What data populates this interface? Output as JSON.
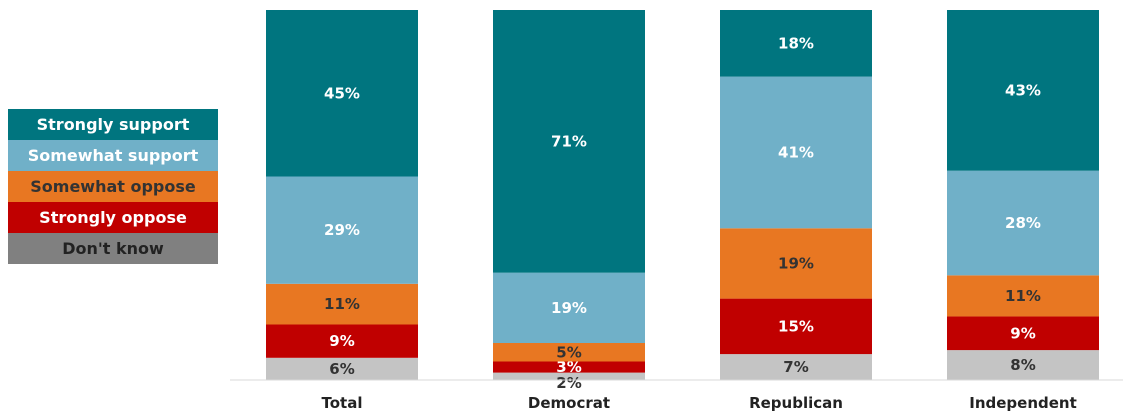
{
  "chart_data": {
    "type": "bar",
    "stacked": true,
    "categories": [
      "Total",
      "Democrat",
      "Republican",
      "Independent"
    ],
    "series": [
      {
        "name": "Don't know",
        "values": [
          6,
          2,
          7,
          8
        ],
        "labels": [
          "6%",
          "2%",
          "7%",
          "8%"
        ],
        "color": "#c4c4c4",
        "label_color": "#333333"
      },
      {
        "name": "Strongly oppose",
        "values": [
          9,
          3,
          15,
          9
        ],
        "labels": [
          "9%",
          "3%",
          "15%",
          "9%"
        ],
        "color": "#c00000",
        "label_color": "#ffffff"
      },
      {
        "name": "Somewhat oppose",
        "values": [
          11,
          5,
          19,
          11
        ],
        "labels": [
          "11%",
          "5%",
          "19%",
          "11%"
        ],
        "color": "#e87722",
        "label_color": "#333333"
      },
      {
        "name": "Somewhat support",
        "values": [
          29,
          19,
          41,
          28
        ],
        "labels": [
          "29%",
          "19%",
          "41%",
          "28%"
        ],
        "color": "#70b0c8",
        "label_color": "#ffffff"
      },
      {
        "name": "Strongly support",
        "values": [
          45,
          71,
          18,
          43
        ],
        "labels": [
          "45%",
          "71%",
          "18%",
          "43%"
        ],
        "color": "#00757f",
        "label_color": "#ffffff"
      }
    ],
    "legend": {
      "position": "left",
      "items": [
        {
          "label": "Strongly support",
          "color": "#00757f",
          "text_color": "#ffffff"
        },
        {
          "label": "Somewhat support",
          "color": "#70b0c8",
          "text_color": "#ffffff"
        },
        {
          "label": "Somewhat oppose",
          "color": "#e87722",
          "text_color": "#333333"
        },
        {
          "label": "Strongly oppose",
          "color": "#c00000",
          "text_color": "#ffffff"
        },
        {
          "label": "Don't know",
          "color": "#808080",
          "text_color": "#222222"
        }
      ]
    },
    "ylim": [
      0,
      100
    ],
    "title": "",
    "xlabel": "",
    "ylabel": "",
    "grid": false
  }
}
